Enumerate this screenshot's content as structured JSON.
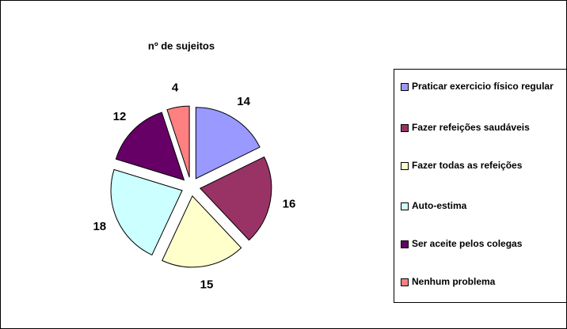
{
  "chart_data": {
    "type": "pie",
    "title": "nº de sujeitos",
    "categories": [
      "Praticar exercicio físico regular",
      "Fazer refeições saudáveis",
      "Fazer todas as refeições",
      "Auto-estima",
      "Ser aceite pelos colegas",
      "Nenhum problema"
    ],
    "values": [
      14,
      16,
      15,
      18,
      12,
      4
    ],
    "colors": [
      "#9999ff",
      "#993366",
      "#ffffcc",
      "#ccffff",
      "#660066",
      "#ff8080"
    ],
    "legend": "right"
  }
}
